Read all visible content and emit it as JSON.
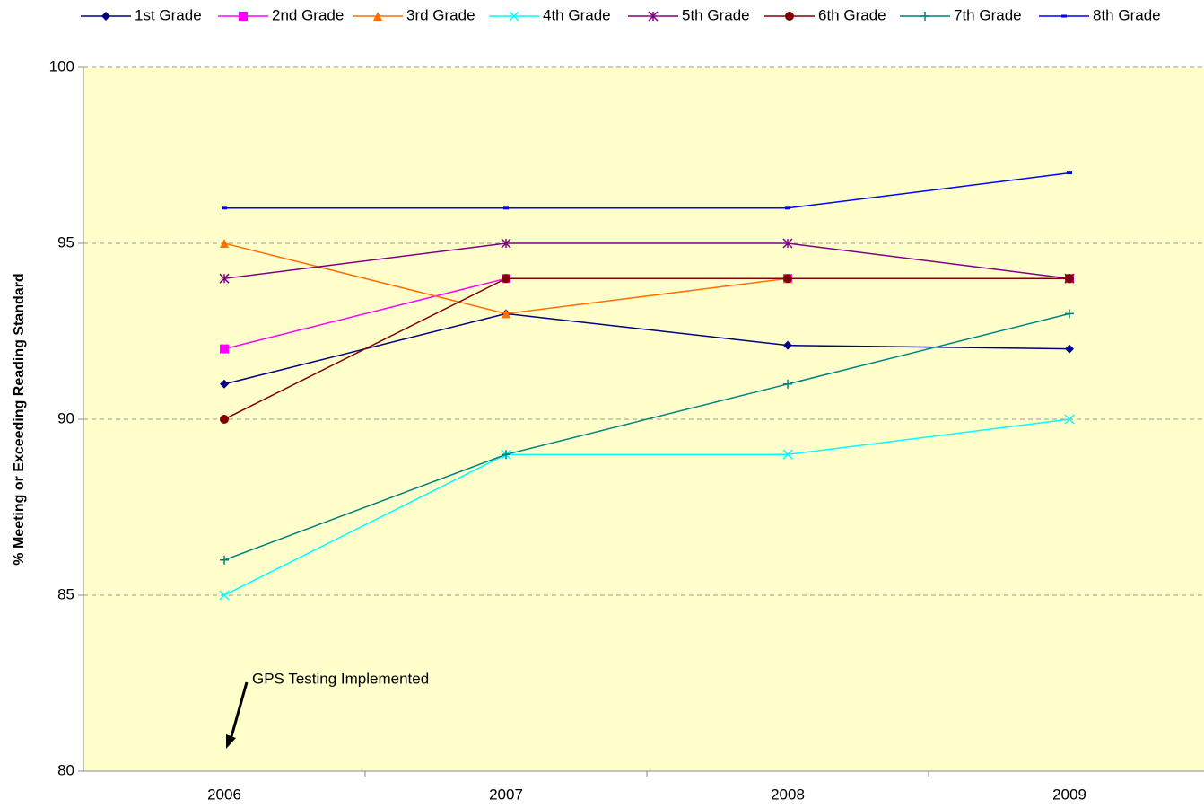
{
  "chart_data": {
    "type": "line",
    "y_label": "% Meeting or Exceeding Reading Standard",
    "categories": [
      "2006",
      "2007",
      "2008",
      "2009"
    ],
    "series": [
      {
        "name": "1st Grade",
        "color": "#000080",
        "marker": "diamond",
        "values": [
          91,
          93,
          92.1,
          92
        ]
      },
      {
        "name": "2nd Grade",
        "color": "#ff00ff",
        "marker": "square",
        "values": [
          92,
          94,
          94,
          94
        ]
      },
      {
        "name": "3rd Grade",
        "color": "#ff7000",
        "marker": "triangle",
        "values": [
          95,
          93,
          94,
          94
        ]
      },
      {
        "name": "4th Grade",
        "color": "#00ffff",
        "marker": "x",
        "values": [
          85,
          89,
          89,
          90
        ]
      },
      {
        "name": "5th Grade",
        "color": "#800080",
        "marker": "star",
        "values": [
          94,
          95,
          95,
          94
        ]
      },
      {
        "name": "6th Grade",
        "color": "#800000",
        "marker": "circle",
        "values": [
          90,
          94,
          94,
          94
        ]
      },
      {
        "name": "7th Grade",
        "color": "#008080",
        "marker": "plus",
        "values": [
          86,
          89,
          91,
          93
        ]
      },
      {
        "name": "8th Grade",
        "color": "#0000ff",
        "marker": "dash",
        "values": [
          96,
          96,
          96,
          97
        ]
      }
    ],
    "ylim": [
      80,
      100
    ],
    "yticks": [
      80,
      85,
      90,
      95,
      100
    ],
    "grid": true,
    "legend": "top",
    "annotation": "GPS Testing Implemented"
  }
}
